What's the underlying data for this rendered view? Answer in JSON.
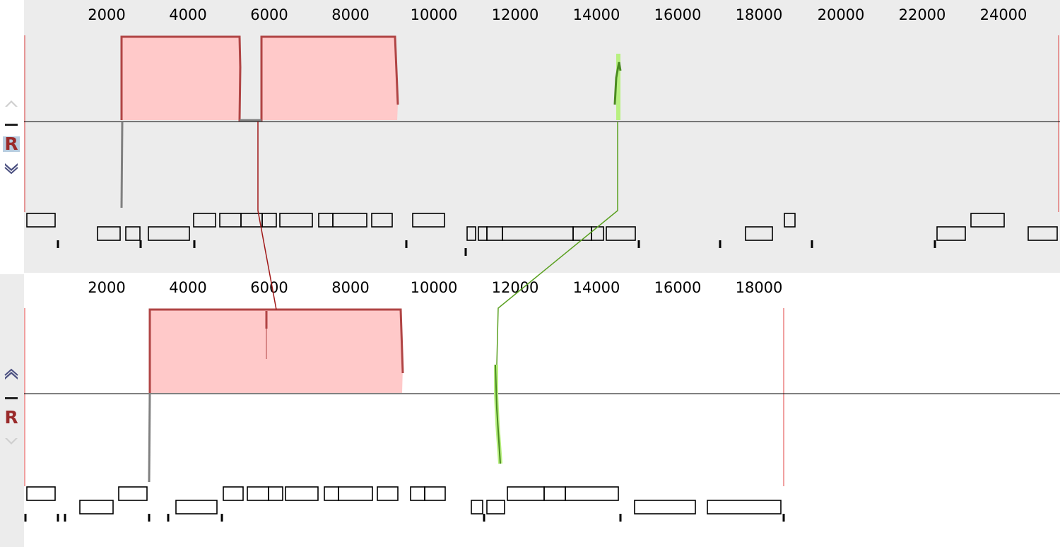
{
  "genomes": [
    {
      "ruler_ticks": [
        "2000",
        "4000",
        "6000",
        "8000",
        "10000",
        "12000",
        "14000",
        "16000",
        "18000",
        "20000",
        "22000",
        "24000"
      ],
      "controls": {
        "reverse_label": "R",
        "reverse_active": true
      }
    },
    {
      "ruler_ticks": [
        "2000",
        "4000",
        "6000",
        "8000",
        "10000",
        "12000",
        "14000",
        "16000",
        "18000"
      ],
      "controls": {
        "reverse_label": "R",
        "reverse_active": false
      }
    }
  ],
  "colors": {
    "block_fill": "#ffc9c9",
    "block_edge": "#b04444",
    "connector_red": "#a01818",
    "connector_green": "#5aa020",
    "green_light": "#b8f080",
    "divider": "#000000",
    "boundary": "#e04040"
  },
  "icons": [
    "chevron-up-icon",
    "minus-icon",
    "chevron-down-icon"
  ]
}
